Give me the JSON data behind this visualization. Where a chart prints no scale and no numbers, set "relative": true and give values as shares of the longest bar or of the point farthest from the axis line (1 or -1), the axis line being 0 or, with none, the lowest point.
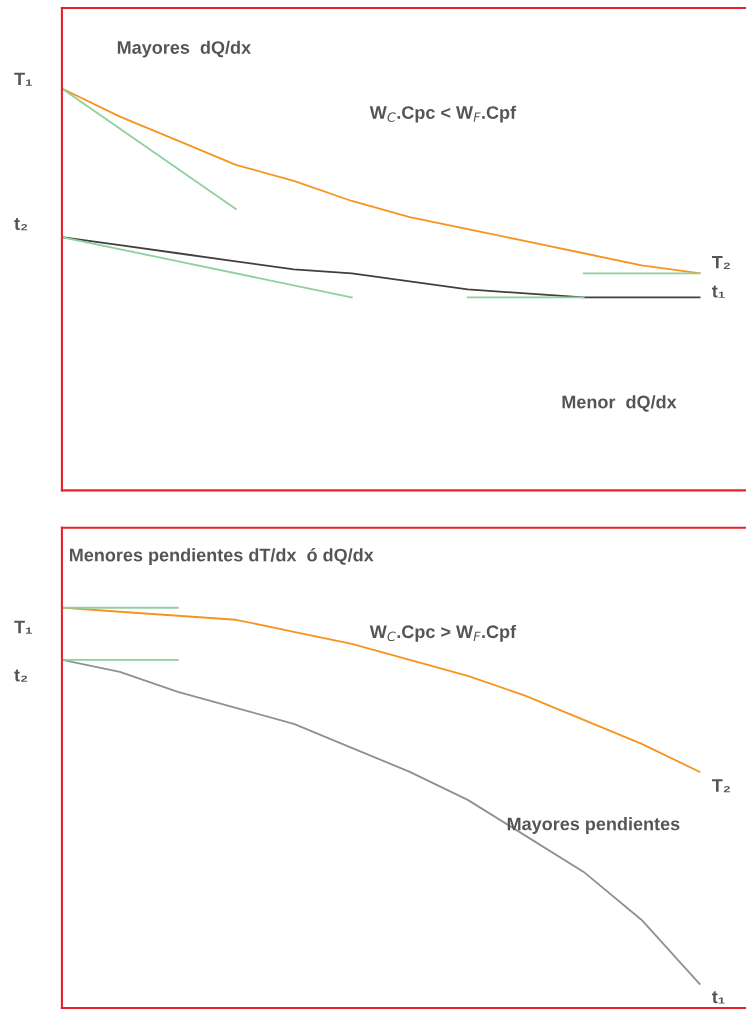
{
  "chart_data": [
    {
      "type": "line",
      "relative": true,
      "categories": [
        null,
        null,
        null,
        null,
        null,
        null,
        null,
        null,
        null,
        null,
        null,
        null
      ],
      "series": [
        {
          "color": "#f7941d",
          "values": [
            1,
            0.93,
            0.87,
            0.81,
            0.77,
            0.72,
            0.68,
            0.65,
            0.62,
            0.59,
            0.56,
            0.54
          ]
        },
        {
          "color": "#404040",
          "values": [
            0.63,
            0.61,
            0.59,
            0.57,
            0.55,
            0.54,
            0.52,
            0.5,
            0.49,
            0.48,
            0.48,
            0.48
          ]
        },
        {
          "color": "#8fd19e",
          "values": [
            1,
            null,
            null,
            0.7,
            null,
            null,
            null,
            null,
            null,
            null,
            null,
            null
          ]
        },
        {
          "color": "#8fd19e",
          "values": [
            0.63,
            null,
            null,
            null,
            null,
            0.48,
            null,
            null,
            null,
            null,
            null,
            null
          ]
        },
        {
          "color": "#8fd19e",
          "values": [
            null,
            null,
            null,
            null,
            null,
            null,
            null,
            null,
            null,
            0.54,
            0.54,
            0.54
          ]
        },
        {
          "color": "#8fd19e",
          "values": [
            null,
            null,
            null,
            null,
            null,
            null,
            null,
            0.48,
            0.48,
            0.48,
            null,
            null
          ]
        }
      ],
      "annotations": [
        "Mayores  dQ/dx",
        "W$_{C}$.Cpc < W$_{F}$.Cpf",
        "Menor  dQ/dx",
        "T₁",
        "t₂",
        "T₂",
        "t₁"
      ]
    },
    {
      "type": "line",
      "relative": true,
      "categories": [
        null,
        null,
        null,
        null,
        null,
        null,
        null,
        null,
        null,
        null,
        null,
        null
      ],
      "series": [
        {
          "color": "#f7941d",
          "values": [
            1,
            0.99,
            0.98,
            0.97,
            0.94,
            0.91,
            0.87,
            0.83,
            0.78,
            0.72,
            0.66,
            0.59
          ]
        },
        {
          "color": "#909090",
          "values": [
            0.87,
            0.84,
            0.79,
            0.75,
            0.71,
            0.65,
            0.59,
            0.52,
            0.43,
            0.34,
            0.22,
            0.06
          ]
        },
        {
          "color": "#8fd19e",
          "values": [
            1,
            1,
            1,
            null,
            null,
            null,
            null,
            null,
            null,
            null,
            null,
            null
          ]
        },
        {
          "color": "#8fd19e",
          "values": [
            0.87,
            0.87,
            0.87,
            null,
            null,
            null,
            null,
            null,
            null,
            null,
            null,
            null
          ]
        }
      ],
      "annotations": [
        "Menores pendientes dT/dx  ó dQ/dx",
        "W$_{C}$.Cpc > W$_{F}$.Cpf",
        "Mayores pendientes",
        "T₁",
        "t₂",
        "T₂",
        "t₁"
      ]
    }
  ]
}
